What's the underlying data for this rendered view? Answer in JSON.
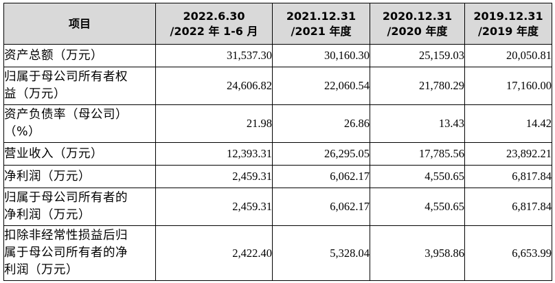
{
  "table": {
    "headers": [
      {
        "lines": [
          "项目"
        ]
      },
      {
        "lines": [
          "2022.6.30",
          "/2022 年 1-6 月"
        ]
      },
      {
        "lines": [
          "2021.12.31",
          "/2021 年度"
        ]
      },
      {
        "lines": [
          "2020.12.31",
          "/2020 年度"
        ]
      },
      {
        "lines": [
          "2019.12.31",
          "/2019 年度"
        ]
      }
    ],
    "rows": [
      {
        "label_lines": [
          "资产总额（万元）"
        ],
        "values": [
          "31,537.30",
          "30,160.30",
          "25,159.03",
          "20,050.81"
        ]
      },
      {
        "label_lines": [
          "归属于母公司所有者权",
          "益（万元）"
        ],
        "values": [
          "24,606.82",
          "22,060.54",
          "21,780.29",
          "17,160.00"
        ]
      },
      {
        "label_lines": [
          "资产负债率（母公司）",
          "（%）"
        ],
        "values": [
          "21.98",
          "26.86",
          "13.43",
          "14.42"
        ]
      },
      {
        "label_lines": [
          "营业收入（万元）"
        ],
        "values": [
          "12,393.31",
          "26,295.05",
          "17,785.56",
          "23,892.21"
        ]
      },
      {
        "label_lines": [
          "净利润（万元）"
        ],
        "values": [
          "2,459.31",
          "6,062.17",
          "4,550.65",
          "6,817.84"
        ]
      },
      {
        "label_lines": [
          "归属于母公司所有者的",
          "净利润（万元）"
        ],
        "values": [
          "2,459.31",
          "6,062.17",
          "4,550.65",
          "6,817.84"
        ]
      },
      {
        "label_lines": [
          "扣除非经常性损益后归",
          "属于母公司所有者的净",
          "利润（万元）"
        ],
        "values": [
          "2,422.40",
          "5,328.04",
          "3,958.86",
          "6,653.99"
        ]
      }
    ]
  }
}
